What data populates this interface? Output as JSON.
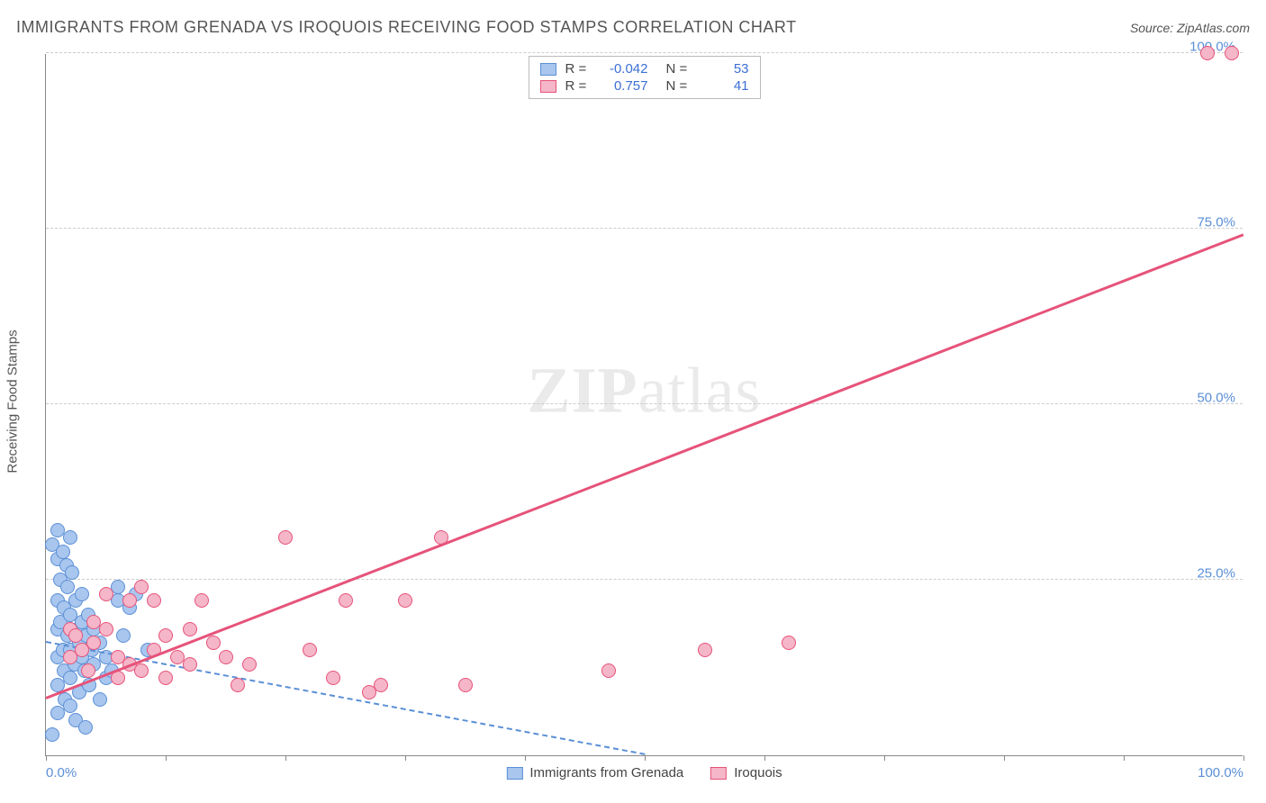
{
  "title": "IMMIGRANTS FROM GRENADA VS IROQUOIS RECEIVING FOOD STAMPS CORRELATION CHART",
  "source": "Source: ZipAtlas.com",
  "ylabel": "Receiving Food Stamps",
  "watermark_a": "ZIP",
  "watermark_b": "atlas",
  "chart": {
    "type": "scatter",
    "xlim": [
      0,
      100
    ],
    "ylim": [
      0,
      100
    ],
    "xtick_positions": [
      0,
      10,
      20,
      30,
      40,
      50,
      60,
      70,
      80,
      90,
      100
    ],
    "xtick_labels": {
      "0": "0.0%",
      "100": "100.0%"
    },
    "ytick_positions": [
      25,
      50,
      75,
      100
    ],
    "ytick_labels": {
      "25": "25.0%",
      "50": "50.0%",
      "75": "75.0%",
      "100": "100.0%"
    },
    "grid_color": "#cccccc",
    "axis_color": "#888888",
    "background_color": "#ffffff",
    "tick_label_color": "#5b8fd6",
    "point_radius": 8,
    "point_border_width": 1.5,
    "point_fill_opacity": 0.25,
    "series": [
      {
        "name": "Immigrants from Grenada",
        "key": "grenada",
        "color_border": "#5b8fd6",
        "color_fill": "#a8c6ee",
        "R_label": "R =",
        "R": "-0.042",
        "N_label": "N =",
        "N": "53",
        "trend": {
          "x1": 0,
          "y1": 16,
          "x2": 50,
          "y2": 0,
          "dashed": true,
          "width": 2
        },
        "points": [
          [
            0.5,
            30
          ],
          [
            0.5,
            3
          ],
          [
            1,
            28
          ],
          [
            1,
            32
          ],
          [
            1,
            18
          ],
          [
            1,
            14
          ],
          [
            1,
            10
          ],
          [
            1,
            22
          ],
          [
            1,
            6
          ],
          [
            1.2,
            25
          ],
          [
            1.2,
            19
          ],
          [
            1.4,
            15
          ],
          [
            1.4,
            29
          ],
          [
            1.5,
            12
          ],
          [
            1.5,
            21
          ],
          [
            1.6,
            8
          ],
          [
            1.7,
            27
          ],
          [
            1.8,
            17
          ],
          [
            1.8,
            24
          ],
          [
            2,
            31
          ],
          [
            2,
            15
          ],
          [
            2,
            11
          ],
          [
            2,
            20
          ],
          [
            2,
            7
          ],
          [
            2.2,
            26
          ],
          [
            2.4,
            13
          ],
          [
            2.5,
            22
          ],
          [
            2.5,
            5
          ],
          [
            2.6,
            18
          ],
          [
            2.8,
            16
          ],
          [
            2.8,
            9
          ],
          [
            3,
            19
          ],
          [
            3,
            14
          ],
          [
            3,
            23
          ],
          [
            3.2,
            12
          ],
          [
            3.3,
            4
          ],
          [
            3.4,
            17
          ],
          [
            3.5,
            20
          ],
          [
            3.6,
            10
          ],
          [
            3.8,
            15
          ],
          [
            4,
            13
          ],
          [
            4,
            18
          ],
          [
            4.5,
            8
          ],
          [
            4.5,
            16
          ],
          [
            5,
            14
          ],
          [
            5,
            11
          ],
          [
            5.5,
            12
          ],
          [
            6,
            22
          ],
          [
            6,
            24
          ],
          [
            6.5,
            17
          ],
          [
            7,
            21
          ],
          [
            7.5,
            23
          ],
          [
            8.5,
            15
          ]
        ]
      },
      {
        "name": "Iroquois",
        "key": "iroquois",
        "color_border": "#e6537a",
        "color_fill": "#f4b6c8",
        "R_label": "R =",
        "R": "0.757",
        "N_label": "N =",
        "N": "41",
        "trend": {
          "x1": 0,
          "y1": 8,
          "x2": 100,
          "y2": 74,
          "dashed": false,
          "width": 3
        },
        "points": [
          [
            2,
            14
          ],
          [
            2,
            18
          ],
          [
            2.5,
            17
          ],
          [
            3,
            15
          ],
          [
            3.5,
            12
          ],
          [
            4,
            16
          ],
          [
            4,
            19
          ],
          [
            5,
            18
          ],
          [
            5,
            23
          ],
          [
            6,
            14
          ],
          [
            6,
            11
          ],
          [
            7,
            22
          ],
          [
            7,
            13
          ],
          [
            8,
            12
          ],
          [
            8,
            24
          ],
          [
            9,
            15
          ],
          [
            9,
            22
          ],
          [
            10,
            11
          ],
          [
            10,
            17
          ],
          [
            11,
            14
          ],
          [
            12,
            18
          ],
          [
            12,
            13
          ],
          [
            13,
            22
          ],
          [
            14,
            16
          ],
          [
            15,
            14
          ],
          [
            16,
            10
          ],
          [
            17,
            13
          ],
          [
            20,
            31
          ],
          [
            22,
            15
          ],
          [
            24,
            11
          ],
          [
            25,
            22
          ],
          [
            27,
            9
          ],
          [
            28,
            10
          ],
          [
            30,
            22
          ],
          [
            33,
            31
          ],
          [
            35,
            10
          ],
          [
            47,
            12
          ],
          [
            55,
            15
          ],
          [
            62,
            16
          ],
          [
            97,
            100
          ],
          [
            99,
            100
          ]
        ]
      }
    ]
  }
}
